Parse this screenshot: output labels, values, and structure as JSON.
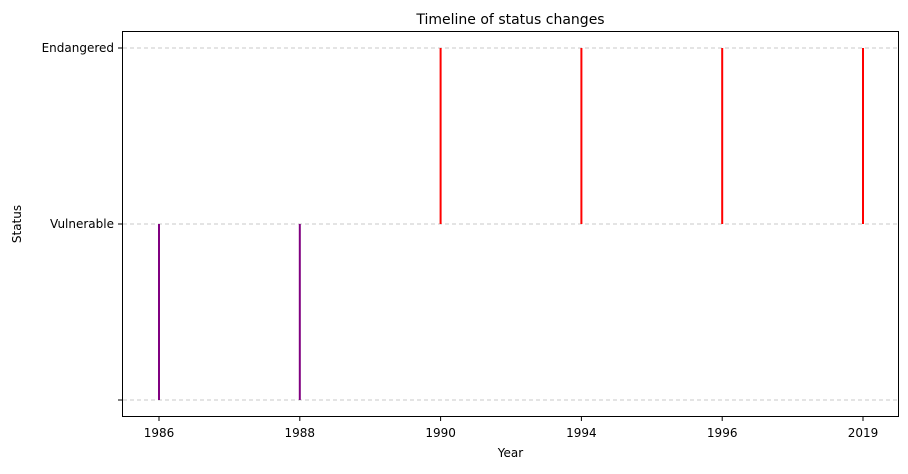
{
  "chart_data": {
    "type": "timeline",
    "title": "Timeline of status changes",
    "xlabel": "Year",
    "ylabel": "Status",
    "categories": [
      "1986",
      "1988",
      "1990",
      "1994",
      "1996",
      "2019"
    ],
    "y_levels": [
      "",
      "Vulnerable",
      "Endangered"
    ],
    "events": [
      {
        "year": "1986",
        "from": "",
        "to": "Vulnerable",
        "color": "#800080"
      },
      {
        "year": "1988",
        "from": "",
        "to": "Vulnerable",
        "color": "#800080"
      },
      {
        "year": "1990",
        "from": "Vulnerable",
        "to": "Endangered",
        "color": "#ff0000"
      },
      {
        "year": "1994",
        "from": "Vulnerable",
        "to": "Endangered",
        "color": "#ff0000"
      },
      {
        "year": "1996",
        "from": "Vulnerable",
        "to": "Endangered",
        "color": "#ff0000"
      },
      {
        "year": "2019",
        "from": "Vulnerable",
        "to": "Endangered",
        "color": "#ff0000"
      }
    ],
    "grid": {
      "axis": "y",
      "style": "dashed",
      "color": "#c8c8c8"
    }
  }
}
